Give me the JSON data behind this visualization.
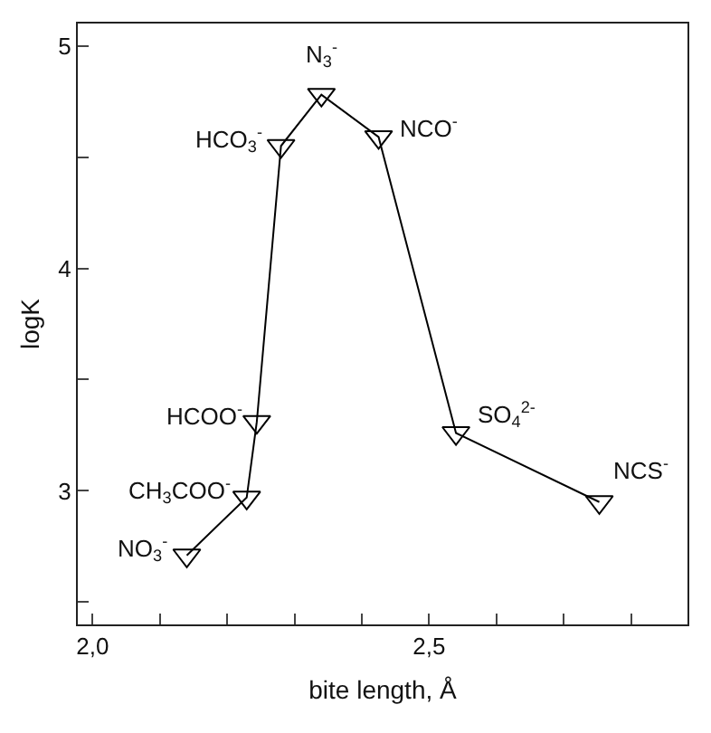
{
  "chart_data": {
    "type": "line",
    "xlabel": "bite length, Å",
    "ylabel": "logK",
    "x": [
      2.14,
      2.229,
      2.244,
      2.28,
      2.34,
      2.425,
      2.54,
      2.753
    ],
    "values": [
      2.71,
      2.97,
      3.31,
      4.55,
      4.78,
      4.59,
      3.26,
      2.95
    ],
    "color": "#000000",
    "marker": "triangle",
    "line_style": "solid",
    "grid": false,
    "xlim": [
      1.978,
      2.884
    ],
    "xticks": [
      {
        "value": 2,
        "label": "2,0"
      },
      {
        "value": 2.1,
        "label": null
      },
      {
        "value": 2.2,
        "label": null
      },
      {
        "value": 2.3,
        "label": null
      },
      {
        "value": 2.4,
        "label": null
      },
      {
        "value": 2.5,
        "label": "2,5"
      },
      {
        "value": 2.6,
        "label": null
      },
      {
        "value": 2.7,
        "label": null
      },
      {
        "value": 2.8,
        "label": null
      }
    ],
    "ylim": [
      2.4,
      5.1
    ],
    "yticks": [
      {
        "value": 2.5,
        "label": null
      },
      3,
      {
        "value": 3.5,
        "label": null
      },
      4,
      {
        "value": 4.5,
        "label": null
      },
      5
    ],
    "annotations": [
      {
        "text": "NO$_{3}$$^{-}$",
        "x": 2.14,
        "y": 2.71
      },
      {
        "text": "CH$_{3}$COO$^{-}$",
        "x": 2.229,
        "y": 2.97
      },
      {
        "text": "HCOO$^{-}$",
        "x": 2.244,
        "y": 3.31
      },
      {
        "text": "HCO$_{3}$$^{-}$",
        "x": 2.28,
        "y": 4.55
      },
      {
        "text": "N$_{3}$$^{-}$",
        "x": 2.34,
        "y": 4.78
      },
      {
        "text": "NCO$^{-}$",
        "x": 2.425,
        "y": 4.59
      },
      {
        "text": "SO$_{4}$$^{2-}$",
        "x": 2.54,
        "y": 3.26
      },
      {
        "text": "NCS$^{-}$",
        "x": 2.753,
        "y": 2.95
      }
    ]
  }
}
